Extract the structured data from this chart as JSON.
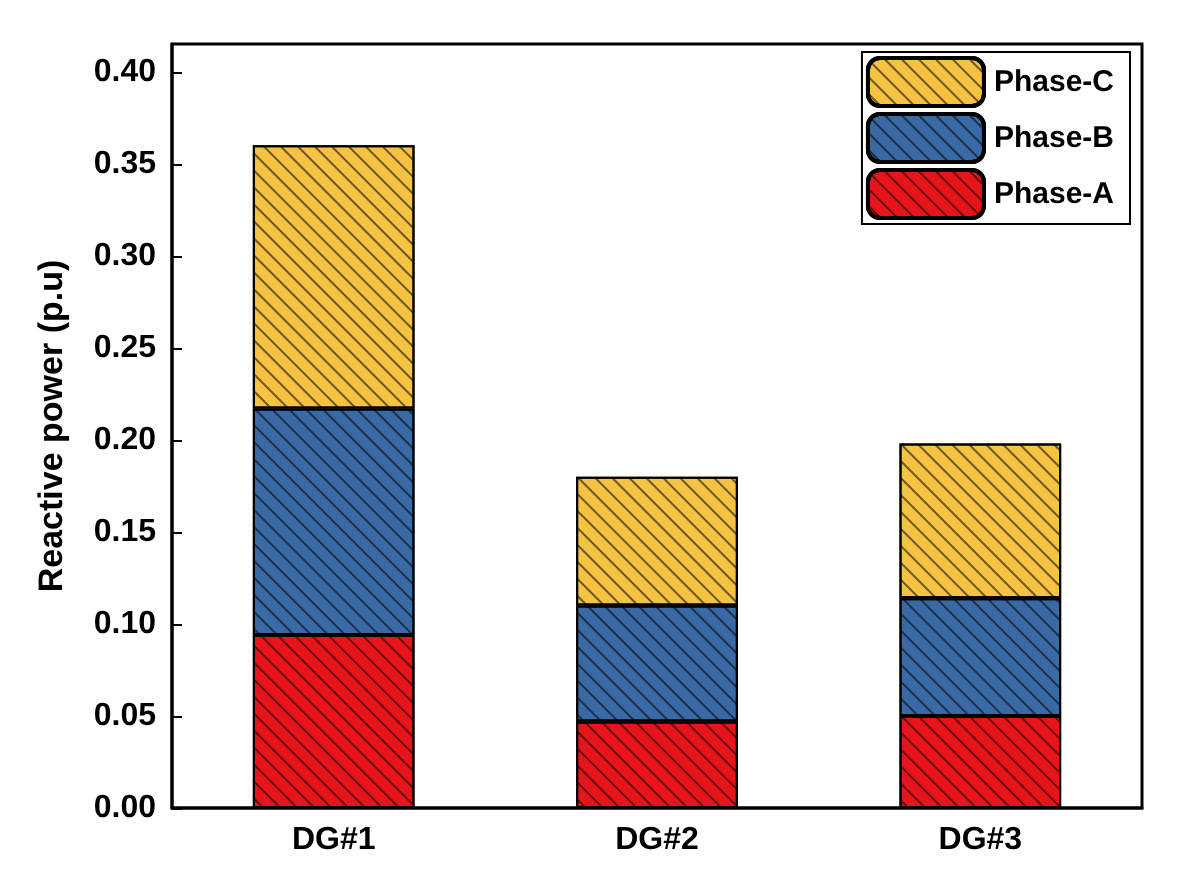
{
  "chart_data": {
    "type": "bar",
    "stacked": true,
    "ylabel": "Reactive power (p.u)",
    "categories": [
      "DG#1",
      "DG#2",
      "DG#3"
    ],
    "series": [
      {
        "name": "Phase-A",
        "color": "#e8141b",
        "values": [
          0.094,
          0.047,
          0.05
        ]
      },
      {
        "name": "Phase-B",
        "color": "#3a6aa6",
        "values": [
          0.123,
          0.063,
          0.064
        ]
      },
      {
        "name": "Phase-C",
        "color": "#f5c242",
        "values": [
          0.143,
          0.07,
          0.084
        ]
      }
    ],
    "ylim": [
      0,
      0.415
    ],
    "yticks": [
      {
        "value": 0,
        "label": "0.00"
      },
      {
        "value": 0.05,
        "label": "0.05"
      },
      {
        "value": 0.1,
        "label": "0.10"
      },
      {
        "value": 0.15,
        "label": "0.15"
      },
      {
        "value": 0.2,
        "label": "0.20"
      },
      {
        "value": 0.25,
        "label": "0.25"
      },
      {
        "value": 0.3,
        "label": "0.30"
      },
      {
        "value": 0.35,
        "label": "0.35"
      },
      {
        "value": 0.4,
        "label": "0.40"
      }
    ],
    "grid": false,
    "legend": "top right"
  }
}
